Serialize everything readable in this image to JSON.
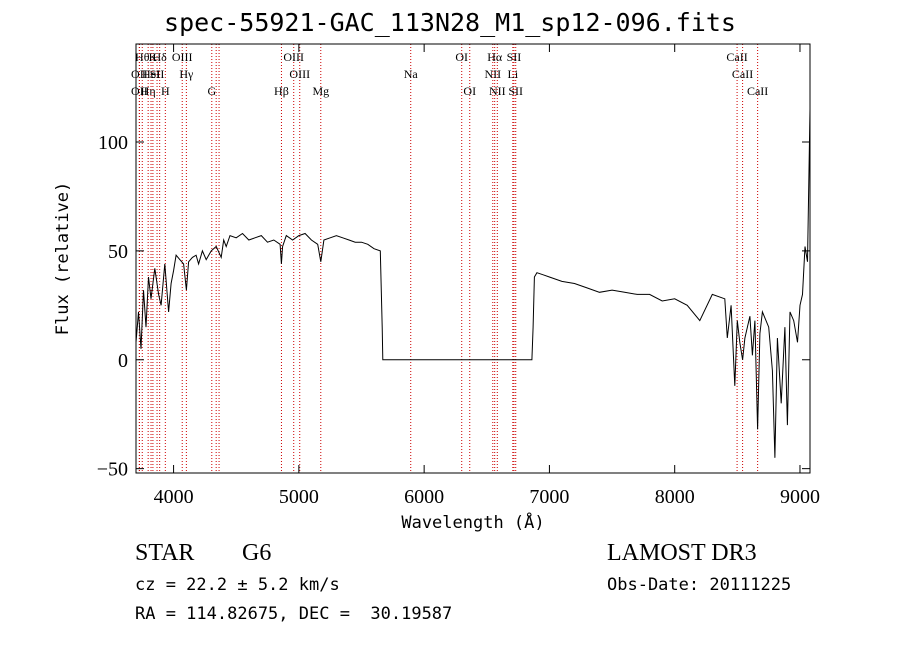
{
  "title": "spec-55921-GAC_113N28_M1_sp12-096.fits",
  "info": {
    "object_class": "STAR",
    "subclass": "G6",
    "survey": "LAMOST DR3",
    "redshift": "cz = 22.2 ± 5.2 km/s",
    "obs_date": "Obs-Date: 20111225",
    "coords": "RA = 114.82675, DEC =  30.19587"
  },
  "chart_data": {
    "type": "line",
    "xlabel": "Wavelength (Å)",
    "ylabel": "Flux (relative)",
    "xlim": [
      3700,
      9080
    ],
    "ylim": [
      -52,
      145
    ],
    "xticks": [
      4000,
      5000,
      6000,
      7000,
      8000,
      9000
    ],
    "yticks": [
      -50,
      0,
      50,
      100
    ],
    "line_color": "#000000",
    "marker_color": "#cc0000",
    "series": [
      {
        "x": [
          3700,
          3720,
          3740,
          3760,
          3780,
          3800,
          3820,
          3850,
          3880,
          3900,
          3930,
          3960,
          3980,
          4000,
          4020,
          4050,
          4080,
          4102,
          4120,
          4150,
          4180,
          4200,
          4230,
          4260,
          4300,
          4340,
          4380,
          4400,
          4420,
          4450,
          4500,
          4550,
          4600,
          4650,
          4700,
          4750,
          4800,
          4850,
          4861,
          4870,
          4900,
          4950,
          5000,
          5050,
          5100,
          5150,
          5175,
          5200,
          5250,
          5300,
          5350,
          5400,
          5450,
          5500,
          5550,
          5600,
          5650,
          5665,
          5670,
          6860,
          6870,
          6880,
          6900,
          6950,
          7000,
          7100,
          7200,
          7300,
          7400,
          7500,
          7600,
          7700,
          7800,
          7900,
          8000,
          8100,
          8200,
          8300,
          8400,
          8420,
          8450,
          8480,
          8500,
          8520,
          8542,
          8560,
          8600,
          8620,
          8640,
          8662,
          8680,
          8700,
          8750,
          8780,
          8800,
          8820,
          8850,
          8880,
          8900,
          8920,
          8950,
          8980,
          9000,
          9020,
          9040,
          9060,
          9080
        ],
        "y": [
          8,
          22,
          5,
          32,
          15,
          38,
          28,
          42,
          30,
          25,
          44,
          22,
          35,
          41,
          48,
          46,
          44,
          32,
          45,
          47,
          48,
          44,
          50,
          46,
          50,
          52,
          47,
          55,
          52,
          57,
          56,
          58,
          55,
          56,
          57,
          54,
          55,
          53,
          44,
          52,
          57,
          55,
          57,
          58,
          55,
          53,
          45,
          55,
          56,
          57,
          56,
          55,
          54,
          54,
          53,
          51,
          50,
          15,
          0,
          0,
          15,
          38,
          40,
          39,
          38,
          36,
          35,
          33,
          31,
          32,
          31,
          30,
          30,
          27,
          28,
          25,
          18,
          30,
          28,
          10,
          25,
          -12,
          18,
          8,
          0,
          10,
          20,
          2,
          18,
          -32,
          12,
          22,
          15,
          -5,
          -45,
          10,
          -20,
          15,
          -30,
          22,
          18,
          8,
          25,
          30,
          52,
          45,
          115
        ]
      }
    ],
    "line_markers": [
      {
        "wl": 3750,
        "row": 0,
        "label": "Hθ"
      },
      {
        "wl": 3835,
        "row": 0,
        "label": "K"
      },
      {
        "wl": 3889,
        "row": 0,
        "label": "Hδ"
      },
      {
        "wl": 3727,
        "row": 1,
        "label": "OII"
      },
      {
        "wl": 3820,
        "row": 1,
        "label": "HeI"
      },
      {
        "wl": 3868,
        "row": 1,
        "label": "SII"
      },
      {
        "wl": 3727,
        "row": 2,
        "label": "OII"
      },
      {
        "wl": 3797,
        "row": 2,
        "label": "Hη"
      },
      {
        "wl": 3934,
        "row": 2,
        "label": "H"
      },
      {
        "wl": 4069,
        "row": 0,
        "label": "OIII"
      },
      {
        "wl": 4102,
        "row": 1,
        "label": "Hγ"
      },
      {
        "wl": 4305,
        "row": 2,
        "label": "G"
      },
      {
        "wl": 4340,
        "row": 0,
        "label": ""
      },
      {
        "wl": 4363,
        "row": 0,
        "label": ""
      },
      {
        "wl": 4861,
        "row": 2,
        "label": "Hβ"
      },
      {
        "wl": 4959,
        "row": 0,
        "label": "OIII"
      },
      {
        "wl": 5007,
        "row": 1,
        "label": "OIII"
      },
      {
        "wl": 5175,
        "row": 2,
        "label": "Mg"
      },
      {
        "wl": 5893,
        "row": 1,
        "label": "Na"
      },
      {
        "wl": 6300,
        "row": 0,
        "label": "OI"
      },
      {
        "wl": 6364,
        "row": 2,
        "label": "OI"
      },
      {
        "wl": 6548,
        "row": 1,
        "label": "NII"
      },
      {
        "wl": 6563,
        "row": 0,
        "label": "Hα"
      },
      {
        "wl": 6584,
        "row": 2,
        "label": "NII"
      },
      {
        "wl": 6708,
        "row": 1,
        "label": "Li"
      },
      {
        "wl": 6717,
        "row": 0,
        "label": "SII"
      },
      {
        "wl": 6731,
        "row": 2,
        "label": "SII"
      },
      {
        "wl": 8498,
        "row": 0,
        "label": "CaII"
      },
      {
        "wl": 8542,
        "row": 1,
        "label": "CaII"
      },
      {
        "wl": 8662,
        "row": 2,
        "label": "CaII"
      }
    ]
  }
}
